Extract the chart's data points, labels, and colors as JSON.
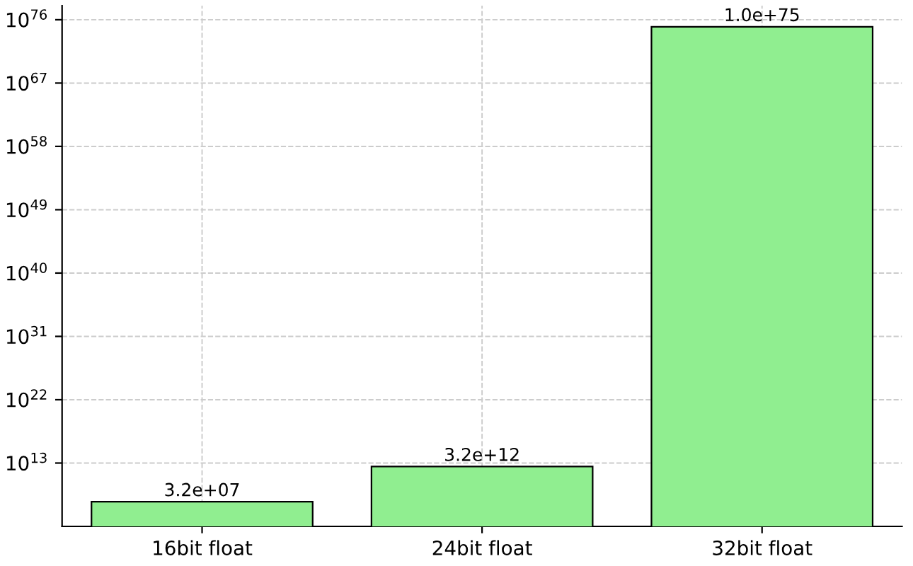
{
  "chart_data": {
    "type": "bar",
    "categories": [
      "16bit float",
      "24bit float",
      "32bit float"
    ],
    "values": [
      32000000.0,
      3200000000000.0,
      1e+75
    ],
    "value_labels": [
      "3.2e+07",
      "3.2e+12",
      "1.0e+75"
    ],
    "color": "#90ee90",
    "log": "y",
    "ylim": [
      10000.0,
      1e+78
    ],
    "yticks": [
      {
        "value": 10000000000000.0,
        "label": "10$^{13}$"
      },
      {
        "value": 1e+22,
        "label": "10$^{22}$"
      },
      {
        "value": 1e+31,
        "label": "10$^{31}$"
      },
      {
        "value": 1e+40,
        "label": "10$^{40}$"
      },
      {
        "value": 1e+49,
        "label": "10$^{49}$"
      },
      {
        "value": 1e+58,
        "label": "10$^{58}$"
      },
      {
        "value": 1e+67,
        "label": "10$^{67}$"
      },
      {
        "value": 1e+76,
        "label": "10$^{76}$"
      }
    ],
    "grid": true
  }
}
